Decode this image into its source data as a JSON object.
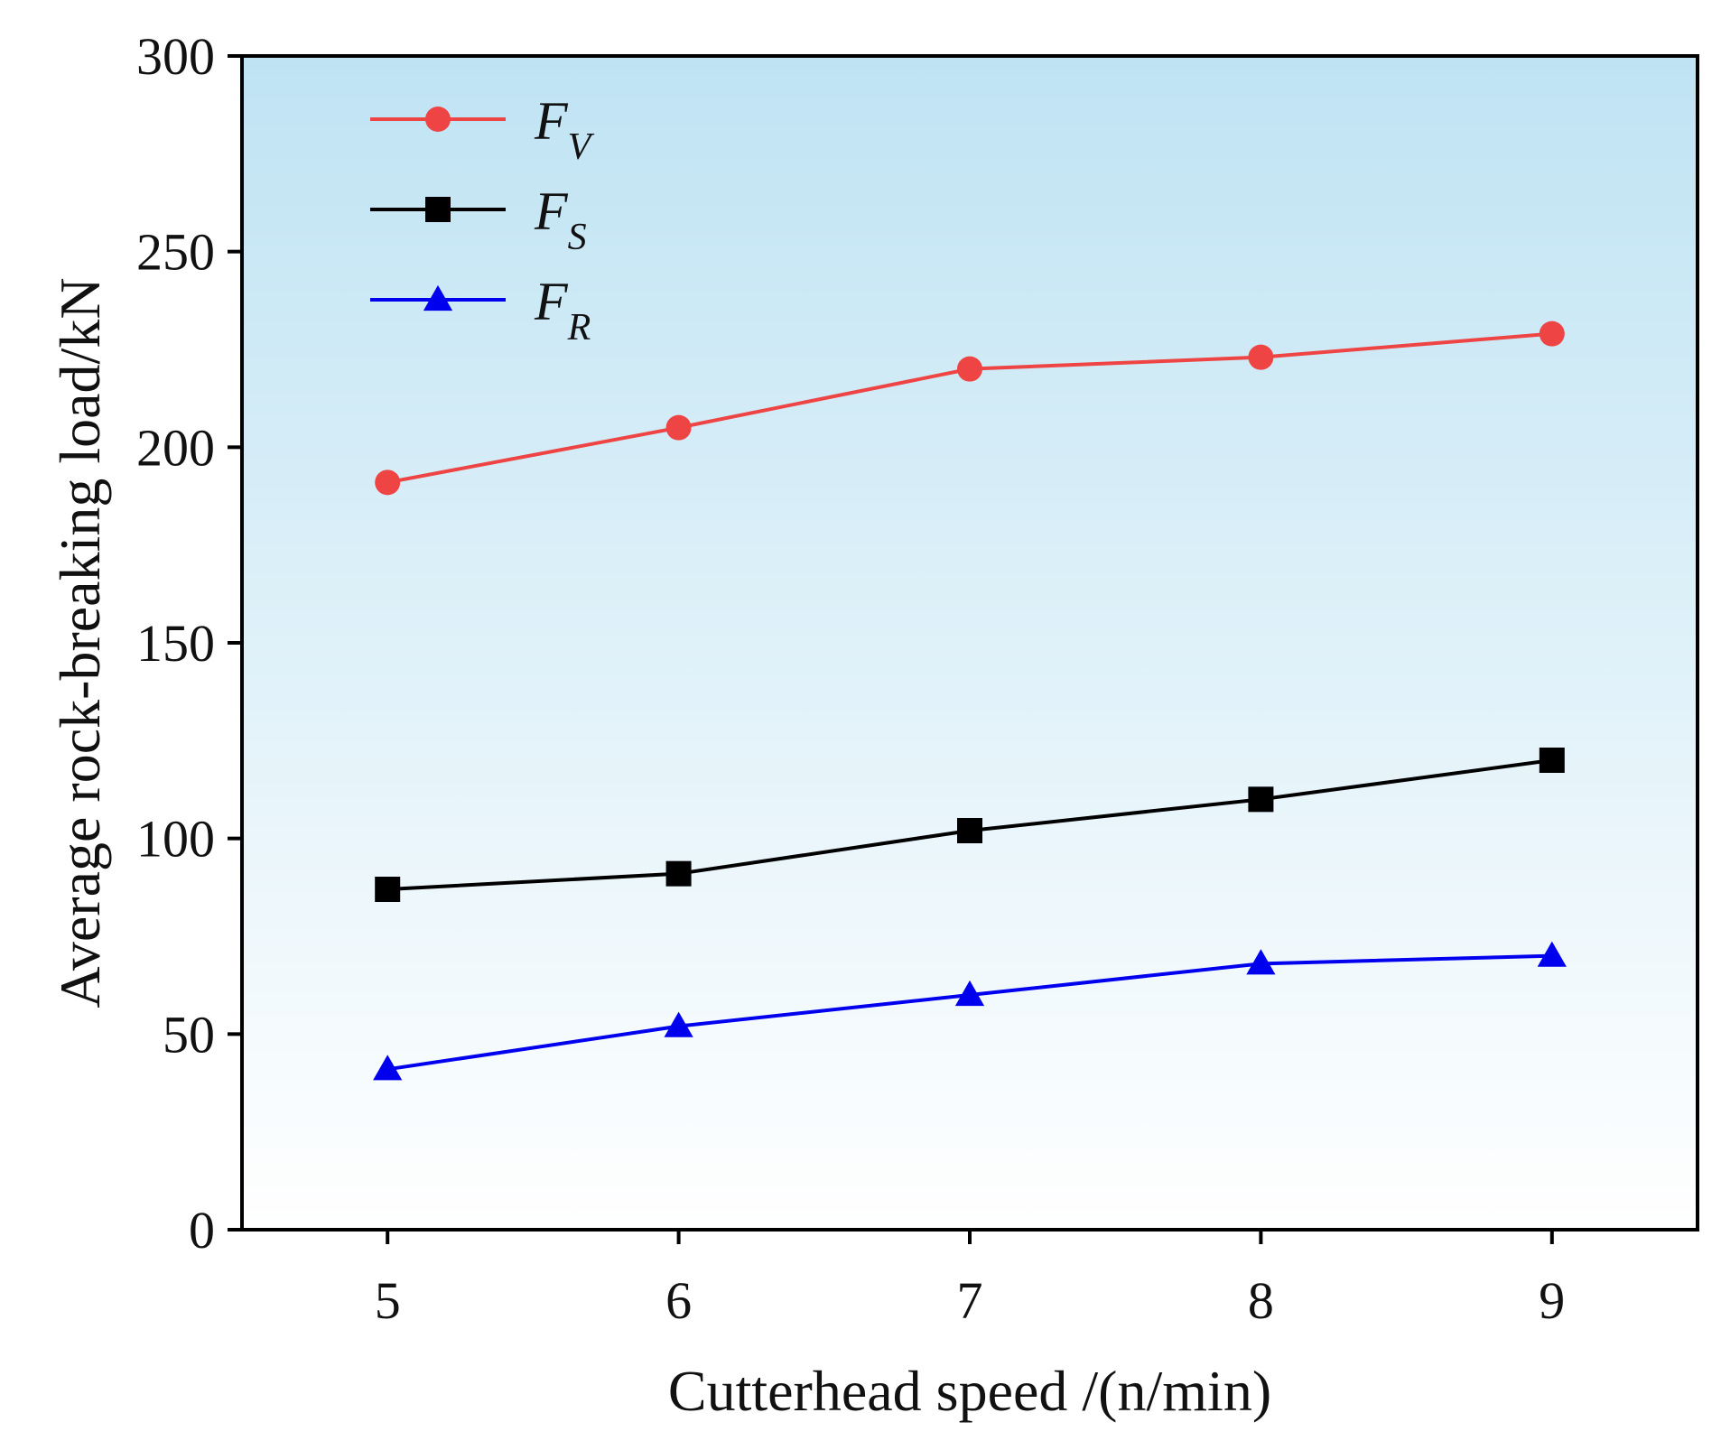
{
  "chart_data": {
    "type": "line",
    "title": "",
    "xlabel": "Cutterhead speed /(n/min)",
    "ylabel": "Average rock-breaking load/kN",
    "x": [
      5,
      6,
      7,
      8,
      9
    ],
    "xticks": [
      5,
      6,
      7,
      8,
      9
    ],
    "xlim": [
      4.5,
      9.5
    ],
    "ylim": [
      0,
      300
    ],
    "yticks": [
      0,
      50,
      100,
      150,
      200,
      250,
      300
    ],
    "grid": false,
    "legend_position": "top-left",
    "background_gradient": [
      "#bfe3f3",
      "#ffffff"
    ],
    "series": [
      {
        "name": "F_V",
        "symbol": "F",
        "subscript": "V",
        "marker": "circle",
        "color": "#ee4444",
        "values": [
          191,
          205,
          220,
          223,
          229
        ]
      },
      {
        "name": "F_S",
        "symbol": "F",
        "subscript": "S",
        "marker": "square",
        "color": "#000000",
        "values": [
          87,
          91,
          102,
          110,
          120
        ]
      },
      {
        "name": "F_R",
        "symbol": "F",
        "subscript": "R",
        "marker": "triangle",
        "color": "#0000ee",
        "values": [
          41,
          52,
          60,
          68,
          70
        ]
      }
    ]
  }
}
